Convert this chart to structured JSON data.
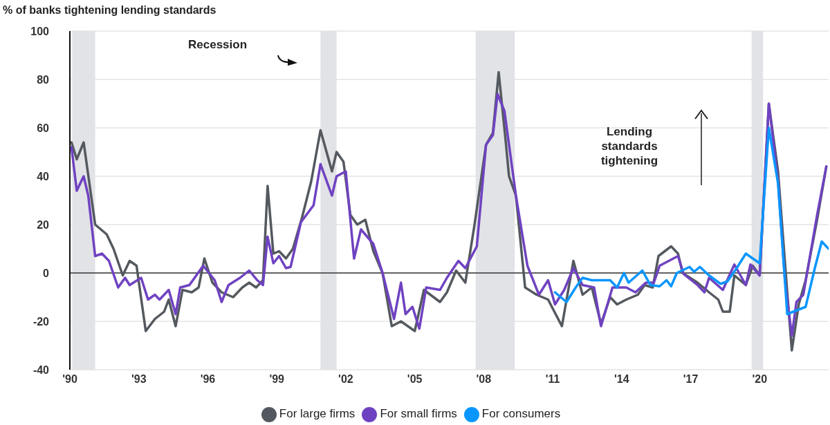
{
  "chart_data": {
    "type": "line",
    "ylabel": "% of banks tightening lending standards",
    "xlim": [
      1990,
      2023
    ],
    "xticks": [
      {
        "value": 1990,
        "label": "'90"
      },
      {
        "value": 1993,
        "label": "'93"
      },
      {
        "value": 1996,
        "label": "'96"
      },
      {
        "value": 1999,
        "label": "'99"
      },
      {
        "value": 2002,
        "label": "'02"
      },
      {
        "value": 2005,
        "label": "'05"
      },
      {
        "value": 2008,
        "label": "'08"
      },
      {
        "value": 2011,
        "label": "'11"
      },
      {
        "value": 2014,
        "label": "'14"
      },
      {
        "value": 2017,
        "label": "'17"
      },
      {
        "value": 2020,
        "label": "'20"
      }
    ],
    "ylim": [
      -40,
      100
    ],
    "yticks": [
      -40,
      -20,
      0,
      20,
      40,
      60,
      80,
      100
    ],
    "grid": "y",
    "legend": "bottom",
    "marker": "none",
    "line_style": "solid",
    "series": [
      {
        "name": "For large firms",
        "color": "#54595f",
        "x": [
          1990.07,
          1990.3,
          1990.6,
          1991.1,
          1991.6,
          1991.9,
          1992.3,
          1992.6,
          1992.9,
          1993.3,
          1993.7,
          1994.1,
          1994.3,
          1994.6,
          1994.9,
          1995.3,
          1995.6,
          1995.85,
          1996.2,
          1996.6,
          1997.1,
          1997.5,
          1997.8,
          1998.1,
          1998.4,
          1998.6,
          1998.85,
          1999.1,
          1999.4,
          1999.7,
          2000.1,
          2000.5,
          2000.9,
          2001.4,
          2001.6,
          2001.9,
          2002.2,
          2002.5,
          2002.85,
          2003.2,
          2003.6,
          2004.0,
          2004.4,
          2005.0,
          2005.4,
          2006.1,
          2006.4,
          2006.8,
          2007.2,
          2007.6,
          2008.1,
          2008.4,
          2008.65,
          2008.95,
          2009.1,
          2009.4,
          2009.8,
          2010.3,
          2010.8,
          2011.4,
          2011.9,
          2012.3,
          2012.7,
          2013.1,
          2013.5,
          2013.8,
          2014.2,
          2014.7,
          2015.0,
          2015.35,
          2015.6,
          2016.15,
          2016.45,
          2016.65,
          2017.3,
          2017.8,
          2018.2,
          2018.4,
          2018.7,
          2018.9,
          2019.4,
          2019.7,
          2020.0,
          2020.4,
          2020.8,
          2021.2,
          2021.4,
          2021.7,
          2022.0,
          2022.5,
          2022.9
        ],
        "values": [
          54,
          47,
          54,
          20,
          16,
          10,
          -1,
          5,
          3,
          -24,
          -19,
          -16,
          -11,
          -22,
          -7,
          -8,
          -6,
          6,
          -4,
          -8,
          -10,
          -6,
          -4,
          -6,
          -3,
          36,
          8,
          9,
          6,
          10,
          23,
          38,
          59,
          42,
          50,
          46,
          24,
          20,
          22,
          9,
          0,
          -22,
          -20,
          -24,
          -7,
          -12,
          -8,
          1,
          -4,
          20,
          53,
          58,
          83,
          55,
          40,
          32,
          -6,
          -9,
          -11,
          -22,
          5,
          -9,
          -6,
          -21,
          -10,
          -13,
          -11,
          -9,
          -5,
          -6,
          7,
          11,
          8,
          0,
          -4,
          -8,
          -11,
          -16,
          -16,
          -1,
          -5,
          3,
          -1,
          70,
          42,
          -8,
          -32,
          -13,
          -3,
          22,
          44
        ]
      },
      {
        "name": "For small firms",
        "color": "#6f42c1",
        "x": [
          1990.07,
          1990.3,
          1990.6,
          1990.8,
          1991.1,
          1991.4,
          1991.7,
          1992.1,
          1992.4,
          1992.6,
          1993.1,
          1993.4,
          1993.7,
          1993.9,
          1994.3,
          1994.6,
          1994.8,
          1995.2,
          1995.5,
          1995.8,
          1996.3,
          1996.6,
          1996.9,
          1997.4,
          1997.8,
          1998.15,
          1998.4,
          1998.6,
          1998.85,
          1999.1,
          1999.4,
          1999.6,
          2000.05,
          2000.6,
          2000.9,
          2001.4,
          2001.6,
          2002.0,
          2002.36,
          2002.66,
          2003.2,
          2003.6,
          2004.1,
          2004.4,
          2004.6,
          2004.9,
          2005.2,
          2005.5,
          2006.1,
          2006.4,
          2006.9,
          2007.2,
          2007.7,
          2008.1,
          2008.4,
          2008.6,
          2008.9,
          2009.2,
          2009.4,
          2009.9,
          2010.4,
          2010.8,
          2011.1,
          2011.5,
          2011.9,
          2012.3,
          2012.8,
          2013.1,
          2013.6,
          2014.2,
          2014.6,
          2015.05,
          2015.4,
          2015.65,
          2016.45,
          2016.7,
          2017.3,
          2017.6,
          2017.8,
          2018.4,
          2018.9,
          2019.4,
          2019.6,
          2020.0,
          2020.4,
          2020.8,
          2021.1,
          2021.4,
          2021.6,
          2021.9,
          2022.5,
          2022.9
        ],
        "values": [
          52,
          34,
          40,
          32,
          7,
          8,
          5,
          -6,
          -2,
          -5,
          -2,
          -11,
          -9,
          -11,
          -7,
          -17,
          -6,
          -5,
          -1,
          3,
          -3,
          -12,
          -5,
          -2,
          1,
          -3,
          -5,
          15,
          4,
          7,
          2,
          2.5,
          21,
          28,
          45,
          32,
          40,
          42,
          6,
          18,
          12,
          0,
          -19,
          -4,
          -17,
          -14,
          -23,
          -6,
          -7,
          -2,
          5,
          2,
          11,
          53,
          57,
          74,
          67,
          46,
          32,
          3,
          -9,
          -3,
          -13,
          -7,
          2,
          -5,
          -6,
          -22,
          -6,
          -6,
          -8,
          -4,
          -4,
          3,
          7,
          -0.5,
          -5,
          -8,
          -2,
          -7,
          3.5,
          -5,
          3.5,
          -1,
          70,
          38,
          -3,
          -26,
          -12,
          -9,
          24,
          44
        ]
      },
      {
        "name": "For consumers",
        "color": "#0a96ff",
        "x": [
          2011.1,
          2011.6,
          2012.0,
          2012.3,
          2012.7,
          2013.1,
          2013.5,
          2013.8,
          2014.1,
          2014.3,
          2014.9,
          2015.25,
          2015.65,
          2015.95,
          2016.15,
          2016.4,
          2016.95,
          2017.15,
          2017.4,
          2017.8,
          2018.3,
          2018.6,
          2019.0,
          2019.4,
          2019.7,
          2020.0,
          2020.4,
          2020.8,
          2021.2,
          2022.0,
          2022.4,
          2022.7,
          2023.0
        ],
        "values": [
          -8,
          -12,
          -6,
          -2,
          -3,
          -3,
          -3,
          -6,
          0,
          -4,
          1,
          -5,
          -5.5,
          -3,
          -5.5,
          0,
          2.5,
          0.5,
          2.5,
          -1,
          -4.5,
          -3.5,
          2,
          8,
          6,
          4,
          60,
          37,
          -17,
          -14,
          2,
          13,
          10
        ]
      }
    ],
    "bands": [
      {
        "axis": "x",
        "from": 1990.1,
        "to": 1991.1,
        "color": "#e1e3e6"
      },
      {
        "axis": "x",
        "from": 2000.9,
        "to": 2001.6,
        "color": "#e1e3e6"
      },
      {
        "axis": "x",
        "from": 2007.65,
        "to": 2009.35,
        "color": "#e1e3e6"
      },
      {
        "axis": "x",
        "from": 2019.65,
        "to": 2020.15,
        "color": "#e1e3e6"
      }
    ],
    "ref_lines": [
      {
        "axis": "y",
        "value": 0,
        "color": "#333333"
      }
    ],
    "annotations": [
      "Recession",
      "Lending standards tightening"
    ]
  }
}
